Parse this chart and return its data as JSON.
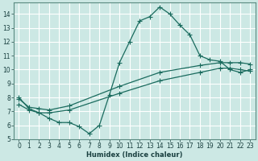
{
  "xlabel": "Humidex (Indice chaleur)",
  "bg_color": "#cce8e4",
  "grid_color": "#ffffff",
  "line_color": "#1a6b5e",
  "xlim": [
    -0.5,
    23.5
  ],
  "ylim": [
    5,
    14.8
  ],
  "xticks": [
    0,
    1,
    2,
    3,
    4,
    5,
    6,
    7,
    8,
    9,
    10,
    11,
    12,
    13,
    14,
    15,
    16,
    17,
    18,
    19,
    20,
    21,
    22,
    23
  ],
  "yticks": [
    5,
    6,
    7,
    8,
    9,
    10,
    11,
    12,
    13,
    14
  ],
  "line1_x": [
    0,
    1,
    2,
    3,
    4,
    5,
    6,
    7,
    8,
    9,
    10,
    11,
    12,
    13,
    14,
    15,
    16,
    17,
    18,
    19,
    20,
    21,
    22,
    23
  ],
  "line1_y": [
    8.0,
    7.2,
    6.9,
    6.5,
    6.2,
    6.2,
    5.9,
    5.4,
    6.0,
    8.2,
    10.5,
    12.0,
    13.5,
    13.8,
    14.5,
    14.0,
    13.2,
    12.5,
    11.0,
    10.7,
    10.6,
    10.0,
    9.8,
    10.0
  ],
  "line2_x": [
    0,
    1,
    2,
    3,
    5,
    10,
    14,
    18,
    20,
    21,
    22,
    23
  ],
  "line2_y": [
    7.9,
    7.3,
    7.2,
    7.1,
    7.4,
    8.8,
    9.8,
    10.3,
    10.5,
    10.5,
    10.5,
    10.4
  ],
  "line3_x": [
    0,
    1,
    2,
    3,
    5,
    10,
    14,
    18,
    20,
    21,
    22,
    23
  ],
  "line3_y": [
    7.5,
    7.1,
    6.9,
    6.9,
    7.1,
    8.3,
    9.2,
    9.8,
    10.1,
    10.1,
    10.0,
    9.9
  ],
  "marker_size": 3,
  "line_width": 0.9,
  "tick_fontsize": 5.5,
  "xlabel_fontsize": 6.0
}
